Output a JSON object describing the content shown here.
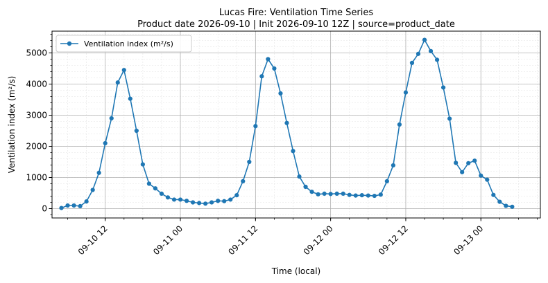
{
  "chart_data": {
    "type": "line",
    "title": "Lucas Fire: Ventilation Time Series",
    "subtitle": "Product date 2026-09-10 | Init 2026-09-10 12Z | source=product_date",
    "xlabel": "Time (local)",
    "ylabel": "Ventilation index (m²/s)",
    "ylim": [
      -300,
      5700
    ],
    "xlim": [
      "2026-09-10 03:30",
      "2026-09-13 09:30"
    ],
    "grid": true,
    "minor_grid": true,
    "legend_position": "top-left",
    "line_color": "#1f77b4",
    "x_ticks": [
      {
        "t": "2026-09-10 12:00",
        "label": "09-10 12"
      },
      {
        "t": "2026-09-11 00:00",
        "label": "09-11 00"
      },
      {
        "t": "2026-09-11 12:00",
        "label": "09-11 12"
      },
      {
        "t": "2026-09-12 00:00",
        "label": "09-12 00"
      },
      {
        "t": "2026-09-12 12:00",
        "label": "09-12 12"
      },
      {
        "t": "2026-09-13 00:00",
        "label": "09-13 00"
      }
    ],
    "y_ticks": [
      0,
      1000,
      2000,
      3000,
      4000,
      5000
    ],
    "series": [
      {
        "name": "Ventilation index (m²/s)",
        "x": [
          "2026-09-10 05:00",
          "2026-09-10 06:00",
          "2026-09-10 07:00",
          "2026-09-10 08:00",
          "2026-09-10 09:00",
          "2026-09-10 10:00",
          "2026-09-10 11:00",
          "2026-09-10 12:00",
          "2026-09-10 13:00",
          "2026-09-10 14:00",
          "2026-09-10 15:00",
          "2026-09-10 16:00",
          "2026-09-10 17:00",
          "2026-09-10 18:00",
          "2026-09-10 19:00",
          "2026-09-10 20:00",
          "2026-09-10 21:00",
          "2026-09-10 22:00",
          "2026-09-10 23:00",
          "2026-09-11 00:00",
          "2026-09-11 01:00",
          "2026-09-11 02:00",
          "2026-09-11 03:00",
          "2026-09-11 04:00",
          "2026-09-11 05:00",
          "2026-09-11 06:00",
          "2026-09-11 07:00",
          "2026-09-11 08:00",
          "2026-09-11 09:00",
          "2026-09-11 10:00",
          "2026-09-11 11:00",
          "2026-09-11 12:00",
          "2026-09-11 13:00",
          "2026-09-11 14:00",
          "2026-09-11 15:00",
          "2026-09-11 16:00",
          "2026-09-11 17:00",
          "2026-09-11 18:00",
          "2026-09-11 19:00",
          "2026-09-11 20:00",
          "2026-09-11 21:00",
          "2026-09-11 22:00",
          "2026-09-11 23:00",
          "2026-09-12 00:00",
          "2026-09-12 01:00",
          "2026-09-12 02:00",
          "2026-09-12 03:00",
          "2026-09-12 04:00",
          "2026-09-12 05:00",
          "2026-09-12 06:00",
          "2026-09-12 07:00",
          "2026-09-12 08:00",
          "2026-09-12 09:00",
          "2026-09-12 10:00",
          "2026-09-12 11:00",
          "2026-09-12 12:00",
          "2026-09-12 13:00",
          "2026-09-12 14:00",
          "2026-09-12 15:00",
          "2026-09-12 16:00",
          "2026-09-12 17:00",
          "2026-09-12 18:00",
          "2026-09-12 19:00",
          "2026-09-12 20:00",
          "2026-09-12 21:00",
          "2026-09-12 22:00",
          "2026-09-12 23:00",
          "2026-09-13 00:00",
          "2026-09-13 01:00",
          "2026-09-13 02:00",
          "2026-09-13 03:00",
          "2026-09-13 04:00",
          "2026-09-13 05:00"
        ],
        "values": [
          20,
          100,
          100,
          80,
          230,
          600,
          1150,
          2100,
          2900,
          4050,
          4450,
          3530,
          2500,
          1420,
          800,
          650,
          480,
          360,
          290,
          290,
          250,
          200,
          180,
          160,
          200,
          250,
          240,
          290,
          430,
          880,
          1500,
          2650,
          4250,
          4800,
          4500,
          3700,
          2750,
          1850,
          1030,
          700,
          540,
          460,
          480,
          470,
          480,
          480,
          440,
          420,
          430,
          420,
          410,
          450,
          880,
          1390,
          2700,
          3730,
          4680,
          4970,
          5420,
          5060,
          4780,
          3890,
          2890,
          1470,
          1170,
          1460,
          1540,
          1060,
          930,
          440,
          220,
          90,
          60
        ]
      }
    ]
  }
}
